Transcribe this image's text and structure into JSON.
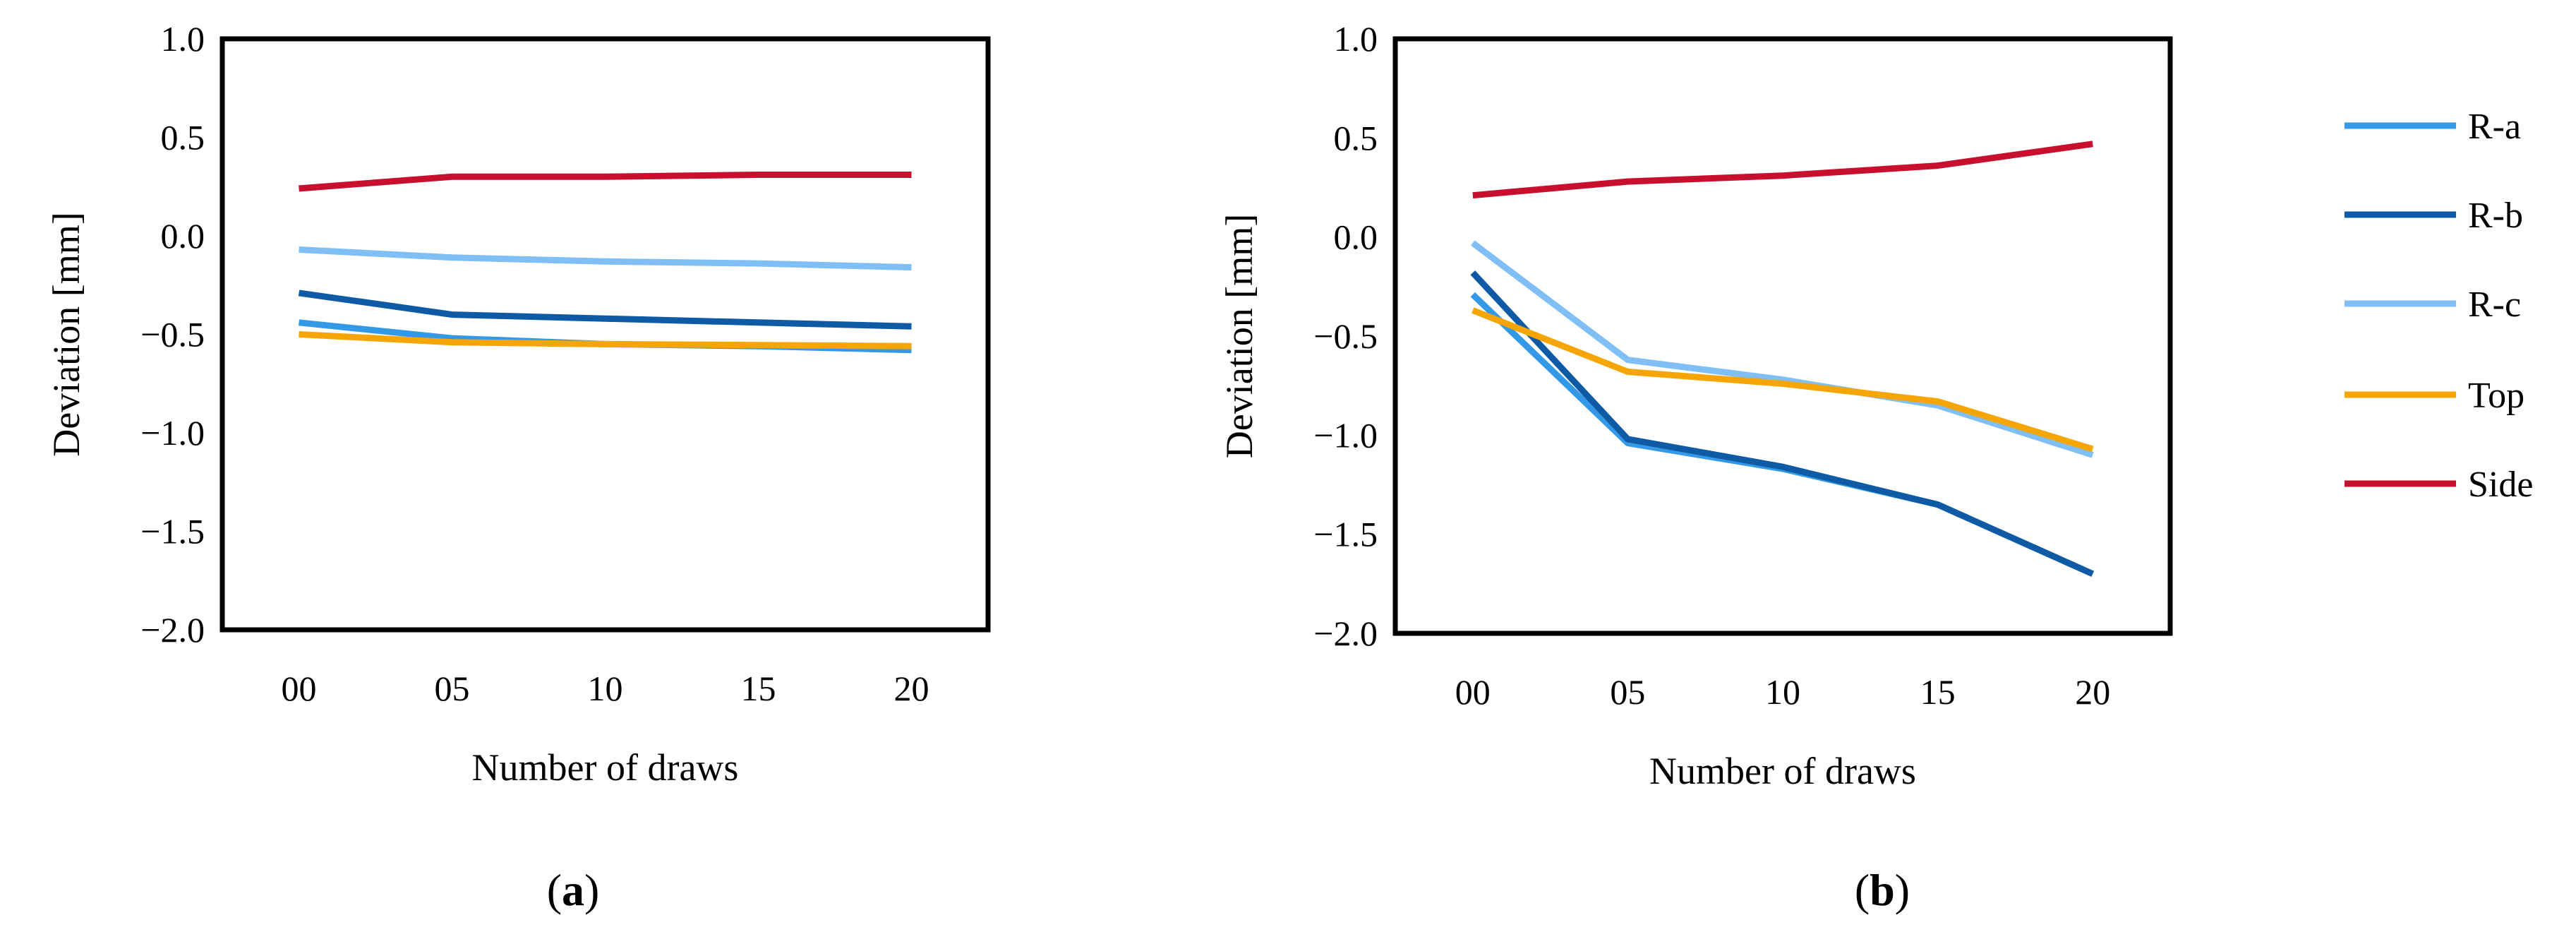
{
  "colors": {
    "R-a": "#3399e6",
    "R-b": "#0e5aa5",
    "R-c": "#7fbff5",
    "Top": "#f5a506",
    "Side": "#c8102e"
  },
  "legend": {
    "items": [
      "R-a",
      "R-b",
      "R-c",
      "Top",
      "Side"
    ]
  },
  "chart_data": [
    {
      "type": "line",
      "panel": "a",
      "caption": {
        "open": "(",
        "letter": "a",
        "close": ")"
      },
      "xlabel": "Number of draws",
      "ylabel": "Deviation [mm]",
      "categories": [
        "00",
        "05",
        "10",
        "15",
        "20"
      ],
      "ylim": [
        -2.0,
        1.0
      ],
      "yticks": [
        "1.0",
        "0.5",
        "0.0",
        "−0.5",
        "−1.0",
        "−1.5",
        "−2.0"
      ],
      "ytick_values": [
        1.0,
        0.5,
        0.0,
        -0.5,
        -1.0,
        -1.5,
        -2.0
      ],
      "series": [
        {
          "name": "R-a",
          "x": [
            0,
            1,
            2,
            3,
            4
          ],
          "values": [
            -0.44,
            -0.52,
            -0.55,
            -0.56,
            -0.58
          ]
        },
        {
          "name": "R-b",
          "x": [
            0,
            1,
            2,
            3,
            4
          ],
          "values": [
            -0.29,
            -0.4,
            -0.42,
            -0.44,
            -0.46
          ]
        },
        {
          "name": "R-c",
          "x": [
            0,
            1,
            2,
            3,
            4
          ],
          "values": [
            -0.07,
            -0.11,
            -0.13,
            -0.14,
            -0.16
          ]
        },
        {
          "name": "Top",
          "x": [
            0,
            1,
            2,
            3,
            4
          ],
          "values": [
            -0.5,
            -0.54,
            -0.55,
            -0.555,
            -0.56
          ]
        },
        {
          "name": "Side",
          "x": [
            0,
            1,
            2,
            3,
            4
          ],
          "values": [
            0.24,
            0.3,
            0.3,
            0.31,
            0.31
          ]
        }
      ]
    },
    {
      "type": "line",
      "panel": "b",
      "caption": {
        "open": "(",
        "letter": "b",
        "close": ")"
      },
      "xlabel": "Number of draws",
      "ylabel": "Deviation [mm]",
      "categories": [
        "00",
        "05",
        "10",
        "15",
        "20"
      ],
      "ylim": [
        -2.0,
        1.0
      ],
      "yticks": [
        "1.0",
        "0.5",
        "0.0",
        "−0.5",
        "−1.0",
        "−1.5",
        "−2.0"
      ],
      "ytick_values": [
        1.0,
        0.5,
        0.0,
        -0.5,
        -1.0,
        -1.5,
        -2.0
      ],
      "series": [
        {
          "name": "R-a",
          "x": [
            0,
            1,
            2,
            3,
            4
          ],
          "values": [
            -0.29,
            -1.04,
            -1.17,
            -1.35,
            -1.7
          ]
        },
        {
          "name": "R-b",
          "x": [
            0,
            1,
            2,
            3,
            4
          ],
          "values": [
            -0.18,
            -1.02,
            -1.16,
            -1.35,
            -1.7
          ]
        },
        {
          "name": "R-c",
          "x": [
            0,
            1,
            2,
            3,
            4
          ],
          "values": [
            -0.03,
            -0.62,
            -0.72,
            -0.85,
            -1.1
          ]
        },
        {
          "name": "Top",
          "x": [
            0,
            1,
            2,
            3,
            4
          ],
          "values": [
            -0.37,
            -0.68,
            -0.74,
            -0.83,
            -1.07
          ]
        },
        {
          "name": "Side",
          "x": [
            0,
            1,
            2,
            3,
            4
          ],
          "values": [
            0.21,
            0.28,
            0.31,
            0.36,
            0.47
          ]
        }
      ]
    }
  ]
}
